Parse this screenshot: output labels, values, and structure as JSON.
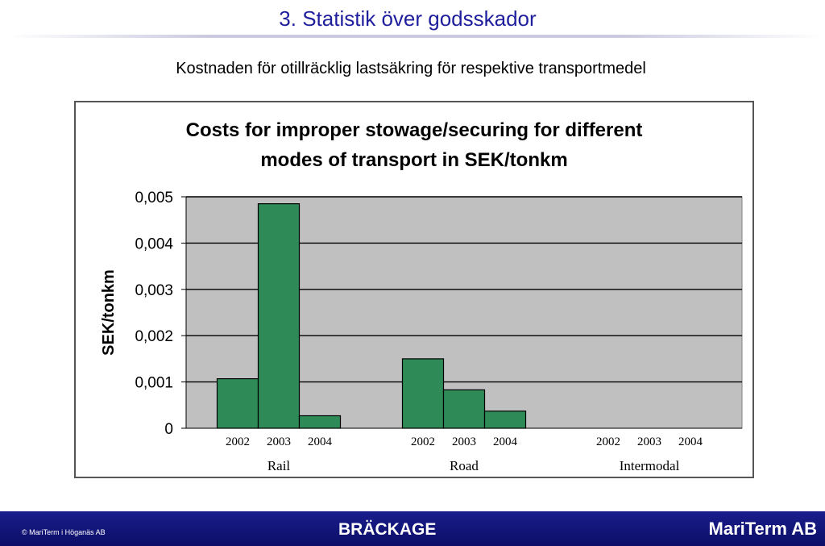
{
  "slide": {
    "title": "3. Statistik över godsskador",
    "subtitle": "Kostnaden för otillräcklig lastsäkring för respektive transportmedel"
  },
  "chart_data": {
    "type": "bar",
    "title_lines": [
      "Costs for improper stowage/securing for different",
      "modes of transport in SEK/tonkm"
    ],
    "ylabel": "SEK/tonkm",
    "xlabel": "",
    "ylim": [
      0,
      0.005
    ],
    "yticks": [
      0,
      0.001,
      0.002,
      0.003,
      0.004,
      0.005
    ],
    "ytick_labels": [
      "0",
      "0,001",
      "0,002",
      "0,003",
      "0,004",
      "0,005"
    ],
    "grid": true,
    "legend": "none",
    "bar_color": "#2e8b57",
    "plot_background": "#c0c0c0",
    "groups": [
      {
        "name": "Rail",
        "categories": [
          "2002",
          "2003",
          "2004"
        ],
        "values": [
          0.00107,
          0.00485,
          0.00027
        ]
      },
      {
        "name": "Road",
        "categories": [
          "2002",
          "2003",
          "2004"
        ],
        "values": [
          0.0015,
          0.00083,
          0.00037
        ]
      },
      {
        "name": "Intermodal",
        "categories": [
          "2002",
          "2003",
          "2004"
        ],
        "values": [
          0,
          0,
          0
        ]
      }
    ]
  },
  "footer": {
    "copyright": "© MariTerm i Höganäs AB",
    "center_label": "BRÄCKAGE",
    "brand": "MariTerm AB",
    "background_color": "#13157a"
  }
}
